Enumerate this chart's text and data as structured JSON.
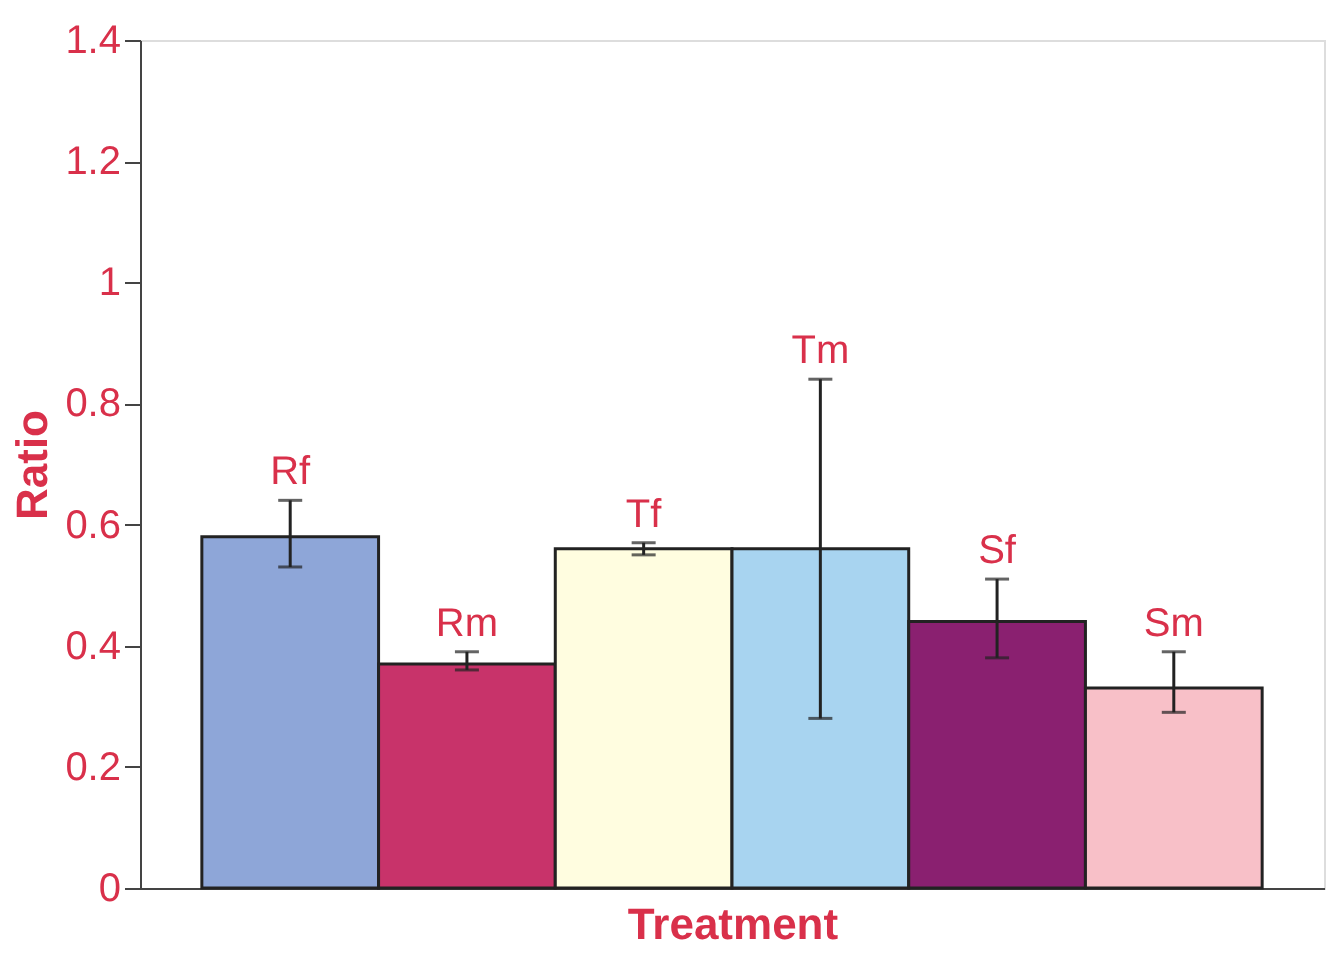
{
  "chart_data": {
    "type": "bar",
    "xlabel": "Treatment",
    "ylabel": "Ratio",
    "categories": [
      "Rf",
      "Rm",
      "Tf",
      "Tm",
      "Sf",
      "Sm"
    ],
    "values": [
      0.58,
      0.37,
      0.56,
      0.56,
      0.44,
      0.33
    ],
    "colors": [
      "#8ea6d8",
      "#c8336a",
      "#fffde0",
      "#a8d4f0",
      "#8a2070",
      "#f8c0c8"
    ],
    "errors": [
      [
        0.53,
        0.64
      ],
      [
        0.36,
        0.39
      ],
      [
        0.55,
        0.57
      ],
      [
        0.28,
        0.84
      ],
      [
        0.38,
        0.51
      ],
      [
        0.29,
        0.39
      ]
    ],
    "ylim": [
      0,
      1.4
    ],
    "yticks": [
      0,
      0.2,
      0.4,
      0.6,
      0.8,
      1,
      1.2,
      1.4
    ],
    "tick_labels": "y",
    "grid": false,
    "legend": false
  }
}
